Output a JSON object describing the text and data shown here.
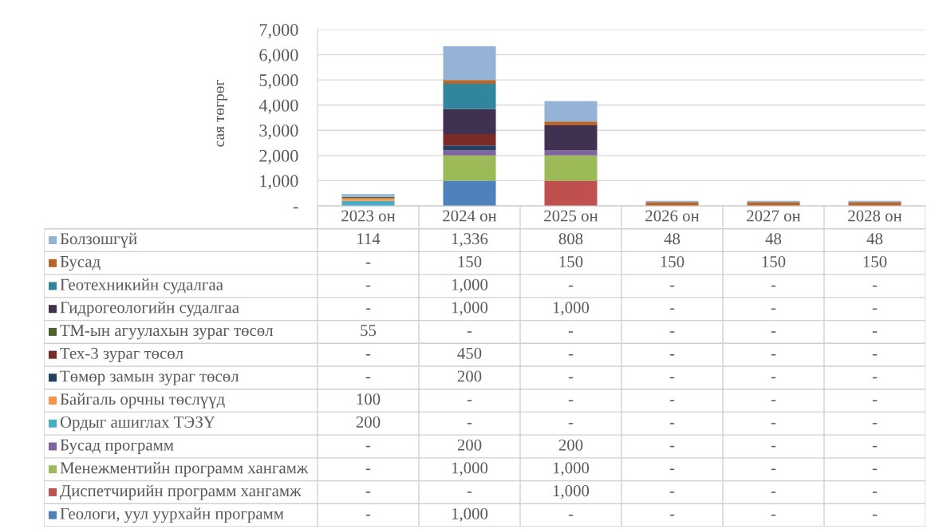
{
  "chart_data": {
    "type": "bar",
    "stacked": true,
    "ylabel": "сая төгрөг",
    "categories": [
      "2023 он",
      "2024 он",
      "2025 он",
      "2026 он",
      "2027 он",
      "2028 он"
    ],
    "ylim": [
      0,
      7000
    ],
    "yticks": [
      {
        "value": 0,
        "label": "-"
      },
      {
        "value": 1000,
        "label": "1,000"
      },
      {
        "value": 2000,
        "label": "2,000"
      },
      {
        "value": 3000,
        "label": "3,000"
      },
      {
        "value": 4000,
        "label": "4,000"
      },
      {
        "value": 5000,
        "label": "5,000"
      },
      {
        "value": 6000,
        "label": "6,000"
      },
      {
        "value": 7000,
        "label": "7,000"
      }
    ],
    "grid": "y",
    "legend": "bottom",
    "series": [
      {
        "name": "Геологи, уул уурхайн программ",
        "color": "#4f81bd",
        "values": [
          0,
          1000,
          0,
          0,
          0,
          0
        ],
        "value_labels": [
          "-",
          "1,000",
          "-",
          "-",
          "-",
          "-"
        ]
      },
      {
        "name": "Диспетчирийн программ хангамж",
        "color": "#c0504d",
        "values": [
          0,
          0,
          1000,
          0,
          0,
          0
        ],
        "value_labels": [
          "-",
          "-",
          "1,000",
          "-",
          "-",
          "-"
        ]
      },
      {
        "name": "Менежментийн программ хангамж",
        "color": "#9bbb59",
        "values": [
          0,
          1000,
          1000,
          0,
          0,
          0
        ],
        "value_labels": [
          "-",
          "1,000",
          "1,000",
          "-",
          "-",
          "-"
        ]
      },
      {
        "name": "Бусад программ",
        "color": "#8064a2",
        "values": [
          0,
          200,
          200,
          0,
          0,
          0
        ],
        "value_labels": [
          "-",
          "200",
          "200",
          "-",
          "-",
          "-"
        ]
      },
      {
        "name": "Ордыг ашиглах ТЭЗҮ",
        "color": "#4bacc6",
        "values": [
          200,
          0,
          0,
          0,
          0,
          0
        ],
        "value_labels": [
          "200",
          "-",
          "-",
          "-",
          "-",
          "-"
        ]
      },
      {
        "name": "Байгаль орчны төслүүд",
        "color": "#f79646",
        "values": [
          100,
          0,
          0,
          0,
          0,
          0
        ],
        "value_labels": [
          "100",
          "-",
          "-",
          "-",
          "-",
          "-"
        ]
      },
      {
        "name": "Төмөр замын зураг төсөл",
        "color": "#254061",
        "values": [
          0,
          200,
          0,
          0,
          0,
          0
        ],
        "value_labels": [
          "-",
          "200",
          "-",
          "-",
          "-",
          "-"
        ]
      },
      {
        "name": "Тех-3 зураг төсөл",
        "color": "#7b2b28",
        "values": [
          0,
          450,
          0,
          0,
          0,
          0
        ],
        "value_labels": [
          "-",
          "450",
          "-",
          "-",
          "-",
          "-"
        ]
      },
      {
        "name": "ТМ-ын агуулахын зураг төсөл",
        "color": "#4f6228",
        "values": [
          55,
          0,
          0,
          0,
          0,
          0
        ],
        "value_labels": [
          "55",
          "-",
          "-",
          "-",
          "-",
          "-"
        ]
      },
      {
        "name": "Гидрогеологийн судалгаа",
        "color": "#403151",
        "values": [
          0,
          1000,
          1000,
          0,
          0,
          0
        ],
        "value_labels": [
          "-",
          "1,000",
          "1,000",
          "-",
          "-",
          "-"
        ]
      },
      {
        "name": "Геотехникийн судалгаа",
        "color": "#31859c",
        "values": [
          0,
          1000,
          0,
          0,
          0,
          0
        ],
        "value_labels": [
          "-",
          "1,000",
          "-",
          "-",
          "-",
          "-"
        ]
      },
      {
        "name": "Бусад",
        "color": "#b8652a",
        "values": [
          0,
          150,
          150,
          150,
          150,
          150
        ],
        "value_labels": [
          "-",
          "150",
          "150",
          "150",
          "150",
          "150"
        ]
      },
      {
        "name": "Болзошгүй",
        "color": "#95b3d7",
        "values": [
          114,
          1336,
          808,
          48,
          48,
          48
        ],
        "value_labels": [
          "114",
          "1,336",
          "808",
          "48",
          "48",
          "48"
        ]
      }
    ]
  }
}
